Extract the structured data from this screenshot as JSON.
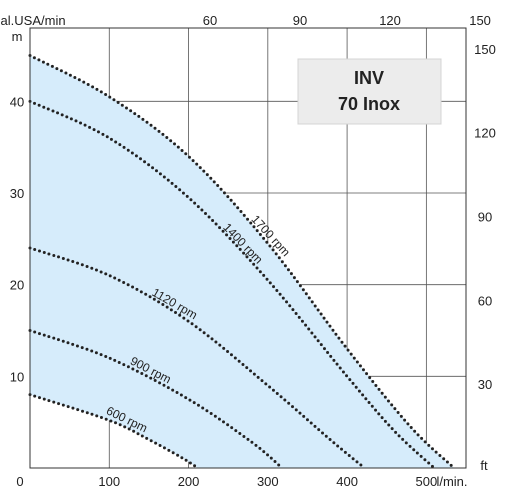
{
  "chart_data": {
    "type": "line",
    "title_lines": [
      "INV",
      "70 Inox"
    ],
    "axes": {
      "x_bottom": {
        "unit": "l/min.",
        "range": [
          0,
          550
        ],
        "ticks": [
          0,
          100,
          200,
          300,
          400,
          500
        ]
      },
      "x_top": {
        "unit": "Gal.USA/min",
        "ticks": [
          60,
          90,
          120,
          150
        ]
      },
      "y_left": {
        "unit": "m",
        "range": [
          0,
          48
        ],
        "ticks": [
          0,
          10,
          20,
          30,
          40
        ]
      },
      "y_right": {
        "unit": "ft",
        "ticks": [
          30,
          60,
          90,
          120,
          150
        ]
      }
    },
    "grid": true,
    "operating_area_fill": "#d6ecfb",
    "curve_color": "#222222",
    "series": [
      {
        "name": "600 rpm",
        "x": [
          0,
          100,
          150,
          190,
          212
        ],
        "y": [
          8,
          5.2,
          3.1,
          1.2,
          0
        ]
      },
      {
        "name": "900 rpm",
        "x": [
          0,
          100,
          200,
          280,
          318
        ],
        "y": [
          15,
          12,
          7.5,
          2.8,
          0
        ]
      },
      {
        "name": "1120 rpm",
        "x": [
          0,
          100,
          200,
          300,
          380,
          422
        ],
        "y": [
          24,
          21,
          16,
          9,
          3,
          0
        ]
      },
      {
        "name": "1400 rpm",
        "x": [
          0,
          100,
          200,
          300,
          400,
          460,
          510
        ],
        "y": [
          40,
          36,
          29.5,
          20.5,
          10,
          4,
          0
        ]
      },
      {
        "name": "1700 rpm",
        "x": [
          0,
          100,
          200,
          300,
          400,
          480,
          535
        ],
        "y": [
          45,
          40.5,
          34,
          24.5,
          13,
          4.5,
          0
        ]
      }
    ]
  }
}
